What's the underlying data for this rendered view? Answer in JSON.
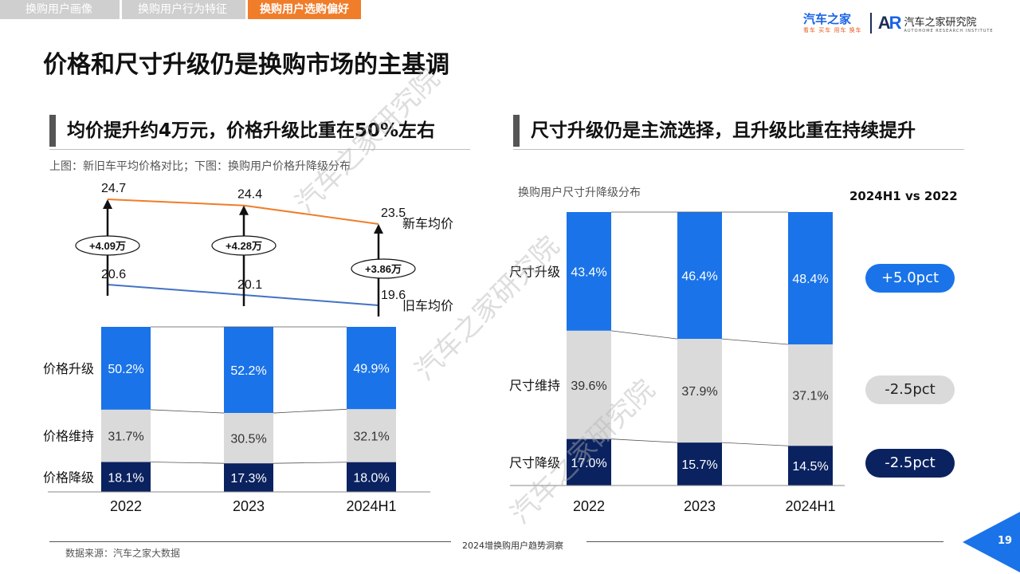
{
  "tabs": [
    {
      "label": "换购用户画像",
      "active": false
    },
    {
      "label": "换购用户行为特征",
      "active": false
    },
    {
      "label": "换购用户选购偏好",
      "active": true
    }
  ],
  "logo": {
    "brand_cn": "汽车之家",
    "brand_sub": "看车 买车 用车 换车",
    "ar_text": "AR",
    "institute_cn": "汽车之家研究院",
    "institute_en": "AUTOHOME RESEARCH INSTITUTE"
  },
  "main_title": "价格和尺寸升级仍是换购市场的主基调",
  "left": {
    "heading": "均价提升约4万元，价格升级比重在50%左右",
    "note": "上图：新旧车平均价格对比；下图：换购用户价格升降级分布"
  },
  "right": {
    "heading": "尺寸升级仍是主流选择，且升级比重在持续提升",
    "chart_caption": "换购用户尺寸升降级分布",
    "compare_header": "2024H1 vs 2022",
    "deltas": [
      {
        "label": "+5.0pct",
        "bg": "#1a73e8",
        "fg": "#ffffff"
      },
      {
        "label": "-2.5pct",
        "bg": "#dadada",
        "fg": "#222222"
      },
      {
        "label": "-2.5pct",
        "bg": "#0b2260",
        "fg": "#ffffff"
      }
    ]
  },
  "watermark": "汽车之家研究院",
  "footer": {
    "source": "数据来源：汽车之家大数据",
    "center": "2024增换购用户趋势洞察",
    "page": "19"
  },
  "colors": {
    "upgrade": "#1a73e8",
    "keep": "#dadada",
    "downgrade": "#0b2260",
    "new_line": "#f07d2a",
    "old_line": "#4472c4",
    "tab_active": "#f07d2a",
    "tab_inactive": "#cfcfcf"
  },
  "chart_data": [
    {
      "type": "line",
      "categories": [
        "2022",
        "2023",
        "2024H1"
      ],
      "series": [
        {
          "name": "新车均价",
          "values": [
            24.7,
            24.4,
            23.5
          ]
        },
        {
          "name": "旧车均价",
          "values": [
            20.6,
            20.1,
            19.6
          ]
        }
      ],
      "diff_labels": [
        "+4.09万",
        "+4.28万",
        "+3.86万"
      ]
    },
    {
      "type": "bar",
      "stacked": true,
      "categories": [
        "2022",
        "2023",
        "2024H1"
      ],
      "series": [
        {
          "name": "价格升级",
          "values": [
            50.2,
            52.2,
            49.9
          ],
          "labels": [
            "50.2%",
            "52.2%",
            "49.9%"
          ]
        },
        {
          "name": "价格维持",
          "values": [
            31.7,
            30.5,
            32.1
          ],
          "labels": [
            "31.7%",
            "30.5%",
            "32.1%"
          ]
        },
        {
          "name": "价格降级",
          "values": [
            18.1,
            17.3,
            18.0
          ],
          "labels": [
            "18.1%",
            "17.3%",
            "18.0%"
          ]
        }
      ]
    },
    {
      "type": "bar",
      "stacked": true,
      "categories": [
        "2022",
        "2023",
        "2024H1"
      ],
      "series": [
        {
          "name": "尺寸升级",
          "values": [
            43.4,
            46.4,
            48.4
          ],
          "labels": [
            "43.4%",
            "46.4%",
            "48.4%"
          ]
        },
        {
          "name": "尺寸维持",
          "values": [
            39.6,
            37.9,
            37.1
          ],
          "labels": [
            "39.6%",
            "37.9%",
            "37.1%"
          ]
        },
        {
          "name": "尺寸降级",
          "values": [
            17.0,
            15.7,
            14.5
          ],
          "labels": [
            "17.0%",
            "15.7%",
            "14.5%"
          ]
        }
      ]
    }
  ]
}
